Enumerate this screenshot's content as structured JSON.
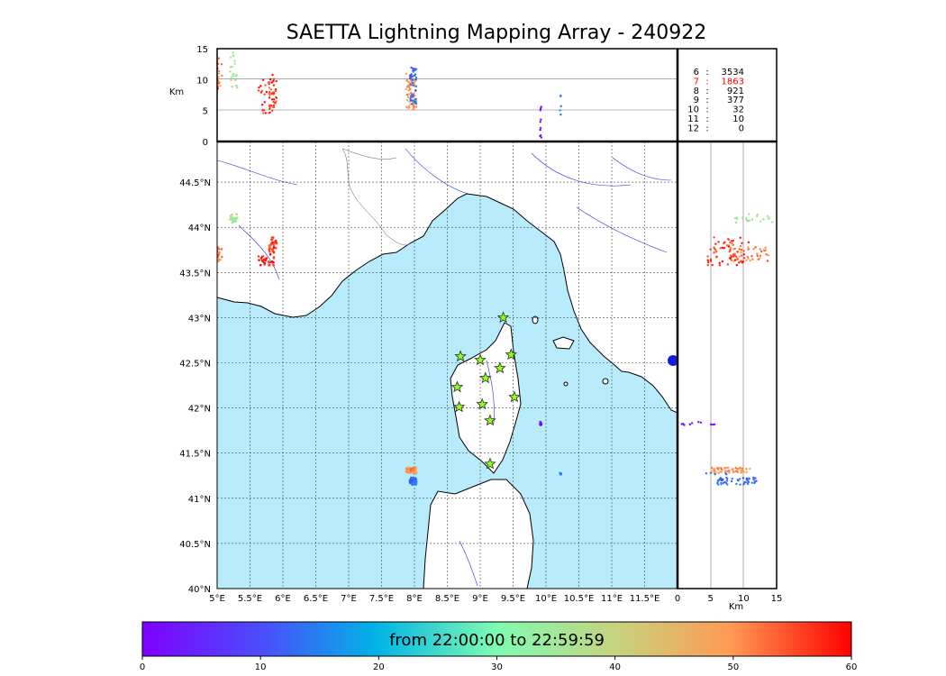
{
  "title": "SAETTA Lightning Mapping Array - 240922",
  "units": {
    "km": "Km"
  },
  "map": {
    "lon_ticks": [
      "5°E",
      "5.5°E",
      "6°E",
      "6.5°E",
      "7°E",
      "7.5°E",
      "8°E",
      "8.5°E",
      "9°E",
      "9.5°E",
      "10°E",
      "10.5°E",
      "11°E",
      "11.5°E"
    ],
    "lat_ticks": [
      "40°N",
      "40.5°N",
      "41°N",
      "41.5°N",
      "42°N",
      "42.5°N",
      "43°N",
      "43.5°N",
      "44°N",
      "44.5°N"
    ],
    "lon_range": [
      5.0,
      12.0
    ],
    "lat_range": [
      40.0,
      44.95
    ]
  },
  "alt_panel": {
    "y_ticks": [
      "0",
      "5",
      "10",
      "15"
    ],
    "range_km": [
      0,
      15
    ]
  },
  "side_panel": {
    "x_ticks": [
      "0",
      "5",
      "10",
      "15"
    ],
    "range_km": [
      0,
      15
    ]
  },
  "stats": [
    {
      "label": "6",
      "value": "3534",
      "color": "#000000"
    },
    {
      "label": "7",
      "value": "1863",
      "color": "#ff0000"
    },
    {
      "label": "8",
      "value": "921",
      "color": "#000000"
    },
    {
      "label": "9",
      "value": "377",
      "color": "#000000"
    },
    {
      "label": "10",
      "value": "32",
      "color": "#000000"
    },
    {
      "label": "11",
      "value": "10",
      "color": "#000000"
    },
    {
      "label": "12",
      "value": "0",
      "color": "#000000"
    }
  ],
  "colorbar": {
    "ticks": [
      "0",
      "10",
      "20",
      "30",
      "40",
      "50",
      "60"
    ],
    "label": "from 22:00:00 to 22:59:59",
    "range": [
      0,
      60
    ]
  },
  "stations": [
    {
      "lon": 9.35,
      "lat": 43.0
    },
    {
      "lon": 8.7,
      "lat": 42.57
    },
    {
      "lon": 9.0,
      "lat": 42.53
    },
    {
      "lon": 9.47,
      "lat": 42.59
    },
    {
      "lon": 9.3,
      "lat": 42.44
    },
    {
      "lon": 9.08,
      "lat": 42.33
    },
    {
      "lon": 8.65,
      "lat": 42.23
    },
    {
      "lon": 9.52,
      "lat": 42.12
    },
    {
      "lon": 8.68,
      "lat": 42.01
    },
    {
      "lon": 9.03,
      "lat": 42.04
    },
    {
      "lon": 9.15,
      "lat": 41.86
    },
    {
      "lon": 9.15,
      "lat": 41.38
    }
  ],
  "clusters": [
    {
      "lon": 5.0,
      "lat": 43.7,
      "t": 52,
      "spread": [
        0.08,
        0.08
      ],
      "n": 45,
      "alt": 11
    },
    {
      "lon": 5.25,
      "lat": 44.1,
      "t": 36,
      "spread": [
        0.06,
        0.05
      ],
      "n": 22,
      "alt": 11.5
    },
    {
      "lon": 5.85,
      "lat": 43.8,
      "t": 56,
      "spread": [
        0.06,
        0.1
      ],
      "n": 35,
      "alt": 8
    },
    {
      "lon": 5.75,
      "lat": 43.63,
      "t": 58,
      "spread": [
        0.12,
        0.05
      ],
      "n": 25,
      "alt": 7.5
    },
    {
      "lon": 7.95,
      "lat": 41.31,
      "t": 50,
      "spread": [
        0.08,
        0.03
      ],
      "n": 60,
      "alt": 8
    },
    {
      "lon": 7.98,
      "lat": 41.19,
      "t": 13,
      "spread": [
        0.05,
        0.04
      ],
      "n": 50,
      "alt": 9
    },
    {
      "lon": 9.92,
      "lat": 41.83,
      "t": 2,
      "spread": [
        0.01,
        0.02
      ],
      "n": 10,
      "alt": 3
    },
    {
      "lon": 10.22,
      "lat": 41.27,
      "t": 14,
      "spread": [
        0.01,
        0.01
      ],
      "n": 5,
      "alt": 4.5
    }
  ]
}
